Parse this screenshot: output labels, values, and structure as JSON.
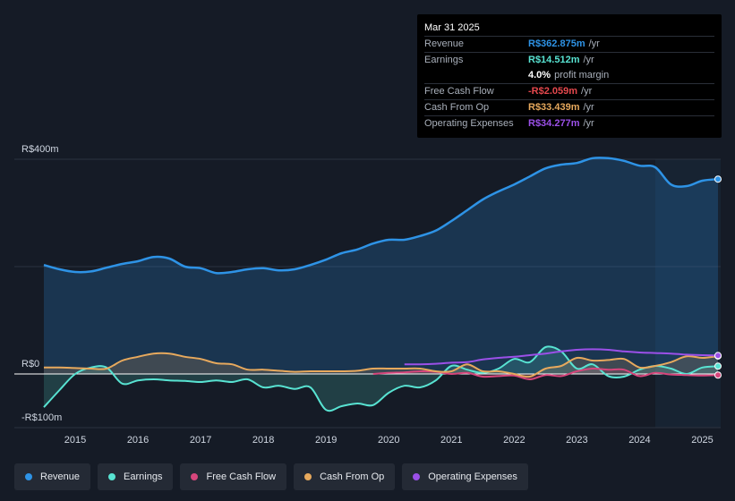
{
  "chart_data": {
    "type": "area",
    "currency": "R$",
    "y_axis_labels": [
      "R$400m",
      "R$0",
      "-R$100m"
    ],
    "ylim": [
      -100,
      400
    ],
    "x_ticks": [
      "2015",
      "2016",
      "2017",
      "2018",
      "2019",
      "2020",
      "2021",
      "2022",
      "2023",
      "2024",
      "2025"
    ],
    "x_tick_values": [
      2015,
      2016,
      2017,
      2018,
      2019,
      2020,
      2021,
      2022,
      2023,
      2024,
      2025
    ],
    "xlim": [
      2014.5,
      2025.25
    ],
    "forecast_start": 2024.25,
    "series": [
      {
        "name": "Revenue",
        "color": "#2e93e6",
        "fill": true,
        "x": [
          2014.5,
          2014.75,
          2015.0,
          2015.25,
          2015.5,
          2015.75,
          2016.0,
          2016.25,
          2016.5,
          2016.75,
          2017.0,
          2017.25,
          2017.5,
          2017.75,
          2018.0,
          2018.25,
          2018.5,
          2018.75,
          2019.0,
          2019.25,
          2019.5,
          2019.75,
          2020.0,
          2020.25,
          2020.5,
          2020.75,
          2021.0,
          2021.25,
          2021.5,
          2021.75,
          2022.0,
          2022.25,
          2022.5,
          2022.75,
          2023.0,
          2023.25,
          2023.5,
          2023.75,
          2024.0,
          2024.25,
          2024.5,
          2024.75,
          2025.0,
          2025.25
        ],
        "values": [
          203,
          195,
          190,
          191,
          198,
          205,
          210,
          218,
          215,
          200,
          197,
          188,
          190,
          195,
          197,
          193,
          195,
          203,
          213,
          225,
          232,
          243,
          250,
          250,
          257,
          267,
          285,
          305,
          325,
          340,
          353,
          368,
          383,
          390,
          393,
          402,
          402,
          397,
          388,
          385,
          353,
          350,
          360,
          363
        ]
      },
      {
        "name": "Earnings",
        "color": "#58e3d2",
        "fill": true,
        "x": [
          2014.5,
          2014.75,
          2015.0,
          2015.25,
          2015.5,
          2015.75,
          2016.0,
          2016.25,
          2016.5,
          2016.75,
          2017.0,
          2017.25,
          2017.5,
          2017.75,
          2018.0,
          2018.25,
          2018.5,
          2018.75,
          2019.0,
          2019.25,
          2019.5,
          2019.75,
          2020.0,
          2020.25,
          2020.5,
          2020.75,
          2021.0,
          2021.25,
          2021.5,
          2021.75,
          2022.0,
          2022.25,
          2022.5,
          2022.75,
          2023.0,
          2023.25,
          2023.5,
          2023.75,
          2024.0,
          2024.25,
          2024.5,
          2024.75,
          2025.0,
          2025.25
        ],
        "values": [
          -62,
          -30,
          0,
          12,
          12,
          -18,
          -12,
          -10,
          -12,
          -13,
          -15,
          -12,
          -15,
          -10,
          -25,
          -22,
          -28,
          -25,
          -67,
          -60,
          -55,
          -58,
          -35,
          -22,
          -25,
          -12,
          15,
          8,
          2,
          10,
          28,
          22,
          50,
          42,
          10,
          18,
          -4,
          -5,
          8,
          15,
          10,
          0,
          12,
          14.5
        ]
      },
      {
        "name": "Free Cash Flow",
        "color": "#d6467c",
        "fill": true,
        "x": [
          2019.75,
          2020.0,
          2020.25,
          2020.5,
          2020.75,
          2021.0,
          2021.25,
          2021.5,
          2021.75,
          2022.0,
          2022.25,
          2022.5,
          2022.75,
          2023.0,
          2023.25,
          2023.5,
          2023.75,
          2024.0,
          2024.25,
          2024.5,
          2024.75,
          2025.0,
          2025.25
        ],
        "values": [
          0,
          2,
          3,
          5,
          4,
          0,
          2,
          -5,
          -4,
          -3,
          -10,
          -2,
          -4,
          5,
          10,
          8,
          8,
          -4,
          2,
          -1,
          -2,
          -3,
          -2.1
        ]
      },
      {
        "name": "Cash From Op",
        "color": "#e7a95d",
        "fill": true,
        "x": [
          2014.5,
          2014.75,
          2015.0,
          2015.25,
          2015.5,
          2015.75,
          2016.0,
          2016.25,
          2016.5,
          2016.75,
          2017.0,
          2017.25,
          2017.5,
          2017.75,
          2018.0,
          2018.25,
          2018.5,
          2018.75,
          2019.0,
          2019.25,
          2019.5,
          2019.75,
          2020.0,
          2020.25,
          2020.5,
          2020.75,
          2021.0,
          2021.25,
          2021.5,
          2021.75,
          2022.0,
          2022.25,
          2022.5,
          2022.75,
          2023.0,
          2023.25,
          2023.5,
          2023.75,
          2024.0,
          2024.25,
          2024.5,
          2024.75,
          2025.0,
          2025.25
        ],
        "values": [
          12,
          12,
          11,
          10,
          10,
          25,
          32,
          38,
          38,
          32,
          28,
          20,
          18,
          8,
          8,
          6,
          4,
          5,
          5,
          5,
          6,
          10,
          10,
          10,
          10,
          5,
          5,
          18,
          5,
          5,
          0,
          -5,
          10,
          15,
          30,
          25,
          26,
          28,
          12,
          15,
          22,
          33,
          30,
          33.4
        ]
      },
      {
        "name": "Operating Expenses",
        "color": "#9b50e8",
        "fill": false,
        "x": [
          2020.25,
          2020.5,
          2020.75,
          2021.0,
          2021.25,
          2021.5,
          2021.75,
          2022.0,
          2022.25,
          2022.5,
          2022.75,
          2023.0,
          2023.25,
          2023.5,
          2023.75,
          2024.0,
          2024.25,
          2024.5,
          2024.75,
          2025.0,
          2025.25
        ],
        "values": [
          18,
          18,
          19,
          21,
          22,
          27,
          30,
          32,
          35,
          38,
          42,
          45,
          46,
          45,
          42,
          40,
          39,
          38,
          36,
          35,
          34.3
        ]
      }
    ]
  },
  "tooltip": {
    "date": "Mar 31 2025",
    "rows": [
      {
        "label": "Revenue",
        "value": "R$362.875m",
        "unit": "/yr",
        "color": "#2e93e6"
      },
      {
        "label": "Earnings",
        "value": "R$14.512m",
        "unit": "/yr",
        "color": "#58e3d2"
      },
      {
        "label": "",
        "value": "4.0%",
        "unit": "profit margin",
        "color": "#ffffff"
      },
      {
        "label": "Free Cash Flow",
        "value": "-R$2.059m",
        "unit": "/yr",
        "color": "#e5484d"
      },
      {
        "label": "Cash From Op",
        "value": "R$33.439m",
        "unit": "/yr",
        "color": "#e7a95d"
      },
      {
        "label": "Operating Expenses",
        "value": "R$34.277m",
        "unit": "/yr",
        "color": "#9b50e8"
      }
    ]
  },
  "legend": [
    {
      "label": "Revenue",
      "color": "#2e93e6"
    },
    {
      "label": "Earnings",
      "color": "#58e3d2"
    },
    {
      "label": "Free Cash Flow",
      "color": "#d6467c"
    },
    {
      "label": "Cash From Op",
      "color": "#e7a95d"
    },
    {
      "label": "Operating Expenses",
      "color": "#9b50e8"
    }
  ]
}
